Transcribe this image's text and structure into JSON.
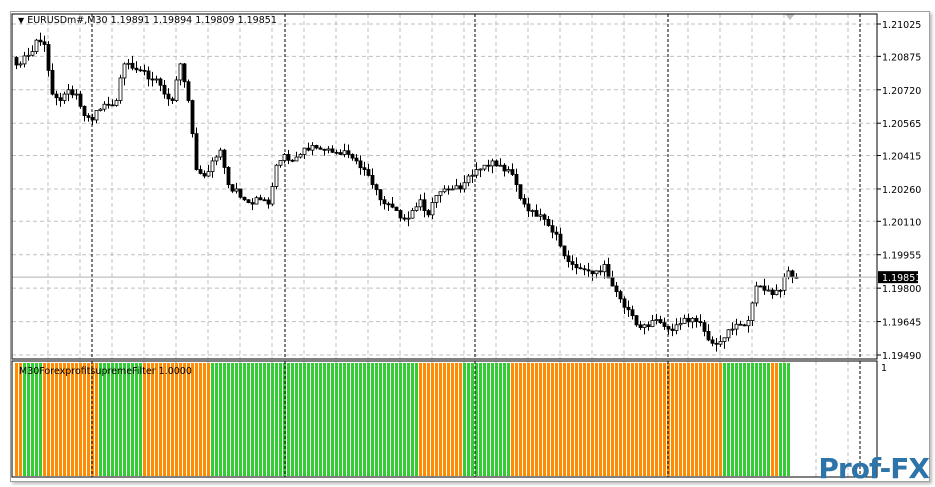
{
  "chart": {
    "symbol_label": "EURUSDm#,M30",
    "ohlc": {
      "open": "1.19891",
      "high": "1.19894",
      "low": "1.19809",
      "close": "1.19851"
    },
    "current_price": "1.19851",
    "price_axis": [
      "1.21025",
      "1.20875",
      "1.20720",
      "1.20565",
      "1.20415",
      "1.20260",
      "1.20110",
      "1.19955",
      "1.19800",
      "1.19645",
      "1.19490"
    ],
    "colors": {
      "bull": "#ffffff",
      "bear": "#000000",
      "grid": "#c0c0c0",
      "current_price_bg": "#000000"
    }
  },
  "indicator": {
    "label": "M30ForexprofitsupremeFilter 1.0000",
    "axis_max": "1",
    "colors": {
      "green": "#32cd32",
      "orange": "#ff8c00"
    },
    "segments": [
      {
        "state": "orange",
        "count": 2
      },
      {
        "state": "green",
        "count": 5
      },
      {
        "state": "orange",
        "count": 14
      },
      {
        "state": "green",
        "count": 11
      },
      {
        "state": "orange",
        "count": 17
      },
      {
        "state": "green",
        "count": 52
      },
      {
        "state": "orange",
        "count": 11
      },
      {
        "state": "green",
        "count": 12
      },
      {
        "state": "orange",
        "count": 53
      },
      {
        "state": "green",
        "count": 12
      },
      {
        "state": "orange",
        "count": 2
      },
      {
        "state": "green",
        "count": 3
      }
    ]
  },
  "chart_data": {
    "type": "candlestick",
    "ylim": [
      1.1949,
      1.21025
    ],
    "closes": [
      1.2084,
      1.2088,
      1.2095,
      1.2093,
      1.207,
      1.2067,
      1.2072,
      1.207,
      1.206,
      1.2058,
      1.2063,
      1.2065,
      1.2067,
      1.2084,
      1.2082,
      1.2081,
      1.2077,
      1.2077,
      1.207,
      1.2067,
      1.2084,
      1.2067,
      1.2035,
      1.2032,
      1.2039,
      1.2044,
      1.2028,
      1.2026,
      1.2021,
      1.2019,
      1.2021,
      1.2019,
      1.2037,
      1.2042,
      1.2039,
      1.2042,
      1.2044,
      1.2045,
      1.2044,
      1.2043,
      1.2042,
      1.2042,
      1.2039,
      1.2035,
      1.2028,
      1.2021,
      1.2019,
      1.2016,
      1.2012,
      1.2016,
      1.2021,
      1.2014,
      1.2023,
      1.2026,
      1.2026,
      1.2026,
      1.2032,
      1.2035,
      1.2037,
      1.2039,
      1.2037,
      1.2035,
      1.2028,
      1.2019,
      1.2016,
      1.2014,
      1.2009,
      1.2005,
      1.1995,
      1.1991,
      1.1989,
      1.1988,
      1.1988,
      1.1991,
      1.1981,
      1.1975,
      1.197,
      1.1963,
      1.1963,
      1.1965,
      1.1964,
      1.1961,
      1.1963,
      1.1966,
      1.1966,
      1.1964,
      1.1956,
      1.1954,
      1.1957,
      1.1961,
      1.1963,
      1.1965,
      1.1981,
      1.1979,
      1.1977,
      1.1979,
      1.1988,
      1.1985
    ]
  },
  "watermark": "Prof-FX"
}
